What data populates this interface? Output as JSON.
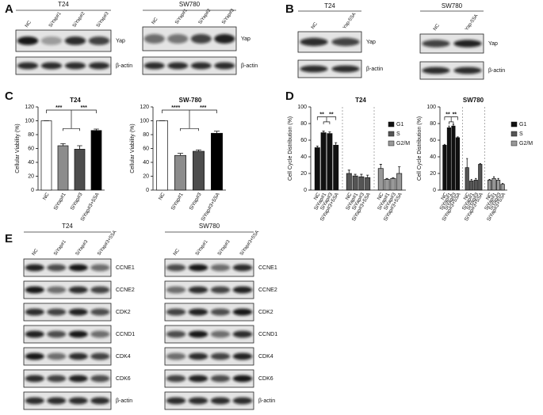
{
  "panel_labels": [
    "A",
    "B",
    "C",
    "D",
    "E"
  ],
  "blots": [
    {
      "title": "T24",
      "lanes": [
        "NC",
        "SiYap#1",
        "SiYap#2",
        "SiYap#3"
      ],
      "bands": [
        "Yap",
        "β-actin"
      ]
    },
    {
      "title": "SW780",
      "lanes": [
        "NC",
        "SiYap#1",
        "SiYap#2",
        "SiYap#3"
      ],
      "bands": [
        "Yap",
        "β-actin"
      ]
    },
    {
      "title": "T24",
      "lanes": [
        "NC",
        "Yap-5SA"
      ],
      "bands": [
        "Yap",
        "β-actin"
      ]
    },
    {
      "title": "SW780",
      "lanes": [
        "NC",
        "Yap-5SA"
      ],
      "bands": [
        "Yap",
        "β-actin"
      ]
    },
    {
      "title": "T24",
      "lanes": [
        "NC",
        "SiYap#1",
        "SiYap#3",
        "SiYap#3+5SA"
      ],
      "bands": [
        "CCNE1",
        "CCNE2",
        "CDK2",
        "CCND1",
        "CDK4",
        "CDK6",
        "β-actin"
      ]
    },
    {
      "title": "SW780",
      "lanes": [
        "NC",
        "SiYap#1",
        "SiYap#3",
        "SiYap#3+5SA"
      ],
      "bands": [
        "CCNE1",
        "CCNE2",
        "CDK2",
        "CCND1",
        "CDK4",
        "CDK6",
        "β-actin"
      ]
    }
  ],
  "chart_data": [
    {
      "type": "bar",
      "title": "T24",
      "y_label": "Cellular Viability (%)",
      "categories": [
        "NC",
        "SiYap#1",
        "SiYap#3",
        "SiYap#3+5SA"
      ],
      "values": [
        100,
        64,
        59,
        86
      ],
      "errors": [
        0,
        3,
        5,
        2
      ],
      "colors": [
        "#ffffff",
        "#8c8c8c",
        "#4d4d4d",
        "#000000"
      ],
      "ylim": [
        0,
        120
      ],
      "yticks": [
        0,
        20,
        40,
        60,
        80,
        100,
        120
      ],
      "annotations": [
        "***",
        "***"
      ]
    },
    {
      "type": "bar",
      "title": "SW-780",
      "y_label": "Cellular Viability (%)",
      "categories": [
        "NC",
        "SiYap#1",
        "SiYap#3",
        "SiYap#3+5SA"
      ],
      "values": [
        100,
        50,
        56,
        82
      ],
      "errors": [
        0,
        3,
        2,
        3
      ],
      "colors": [
        "#ffffff",
        "#8c8c8c",
        "#4d4d4d",
        "#000000"
      ],
      "ylim": [
        0,
        120
      ],
      "yticks": [
        0,
        20,
        40,
        60,
        80,
        100,
        120
      ],
      "annotations": [
        "****",
        "***"
      ]
    },
    {
      "type": "bar",
      "title": "T24",
      "y_label": "Cell Cycle Distribution (%)",
      "categories": [
        "NC",
        "SiYap#1",
        "SiYap#3",
        "SiYap#3+5SA"
      ],
      "series": [
        {
          "name": "G1",
          "color": "#111111",
          "values": [
            51,
            69,
            68,
            54
          ],
          "errors": [
            2,
            2,
            2,
            3
          ]
        },
        {
          "name": "S",
          "color": "#555555",
          "values": [
            20,
            17,
            16,
            15
          ],
          "errors": [
            4,
            2,
            3,
            3
          ]
        },
        {
          "name": "G2/M",
          "color": "#999999",
          "values": [
            26,
            13,
            14,
            20
          ],
          "errors": [
            5,
            1,
            1,
            8
          ]
        }
      ],
      "ylim": [
        0,
        100
      ],
      "yticks": [
        0,
        20,
        40,
        60,
        80,
        100
      ],
      "annotations": [
        "**",
        "**"
      ]
    },
    {
      "type": "bar",
      "title": "SW780",
      "y_label": "Cell Cycle Distribution (%)",
      "categories": [
        "NC",
        "SiYap#1",
        "SiYap#3",
        "SiYap#3+5SA"
      ],
      "series": [
        {
          "name": "G1",
          "color": "#111111",
          "values": [
            54,
            75,
            77,
            63
          ],
          "errors": [
            1,
            2,
            2,
            1
          ]
        },
        {
          "name": "S",
          "color": "#555555",
          "values": [
            27,
            11,
            12,
            31
          ],
          "errors": [
            11,
            2,
            2,
            1
          ]
        },
        {
          "name": "G2/M",
          "color": "#999999",
          "values": [
            12,
            14,
            12,
            7
          ],
          "errors": [
            1,
            2,
            2,
            1
          ]
        }
      ],
      "ylim": [
        0,
        100
      ],
      "yticks": [
        0,
        20,
        40,
        60,
        80,
        100
      ],
      "annotations": [
        "**",
        "**"
      ]
    }
  ]
}
